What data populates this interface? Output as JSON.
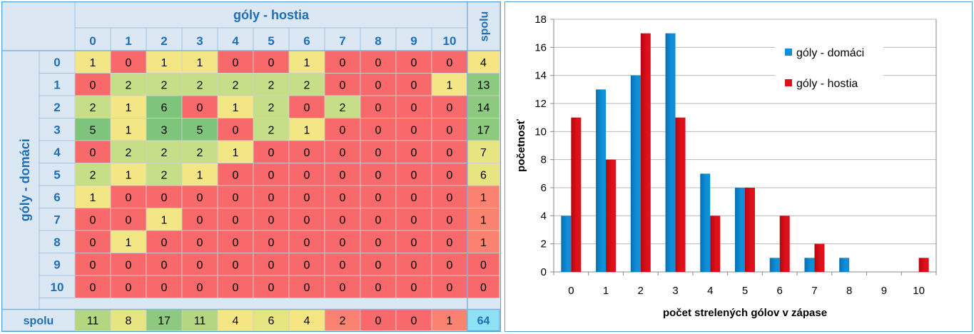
{
  "table": {
    "col_title": "góly - hostia",
    "row_title": "góly - domáci",
    "total_label": "spolu",
    "col_labels": [
      "0",
      "1",
      "2",
      "3",
      "4",
      "5",
      "6",
      "7",
      "8",
      "9",
      "10"
    ],
    "row_labels": [
      "0",
      "1",
      "2",
      "3",
      "4",
      "5",
      "6",
      "7",
      "8",
      "9",
      "10"
    ],
    "rows": [
      [
        1,
        0,
        1,
        1,
        0,
        0,
        1,
        0,
        0,
        0,
        0
      ],
      [
        0,
        2,
        2,
        2,
        2,
        2,
        2,
        0,
        0,
        0,
        1
      ],
      [
        2,
        1,
        6,
        0,
        1,
        2,
        0,
        2,
        0,
        0,
        0
      ],
      [
        5,
        1,
        3,
        5,
        0,
        2,
        1,
        0,
        0,
        0,
        0
      ],
      [
        0,
        2,
        2,
        2,
        1,
        0,
        0,
        0,
        0,
        0,
        0
      ],
      [
        2,
        1,
        2,
        1,
        0,
        0,
        0,
        0,
        0,
        0,
        0
      ],
      [
        1,
        0,
        0,
        0,
        0,
        0,
        0,
        0,
        0,
        0,
        0
      ],
      [
        0,
        0,
        1,
        0,
        0,
        0,
        0,
        0,
        0,
        0,
        0
      ],
      [
        0,
        1,
        0,
        0,
        0,
        0,
        0,
        0,
        0,
        0,
        0
      ],
      [
        0,
        0,
        0,
        0,
        0,
        0,
        0,
        0,
        0,
        0,
        0
      ],
      [
        0,
        0,
        0,
        0,
        0,
        0,
        0,
        0,
        0,
        0,
        0
      ]
    ],
    "row_totals": [
      4,
      13,
      14,
      17,
      7,
      6,
      1,
      1,
      1,
      0,
      0
    ],
    "col_totals": [
      11,
      8,
      17,
      11,
      4,
      6,
      4,
      2,
      0,
      0,
      1
    ],
    "grand_total": 64,
    "colors": {
      "zero": "#f8696b",
      "one": "#f2e784",
      "two": "#c6de87",
      "high": "#7fc47d",
      "header_bg": "#dbe7f3",
      "header_text": "#1f6fb8",
      "grand_total_bg": "#8fe1f5"
    }
  },
  "chart_data": {
    "type": "bar",
    "categories": [
      "0",
      "1",
      "2",
      "3",
      "4",
      "5",
      "6",
      "7",
      "8",
      "9",
      "10"
    ],
    "series": [
      {
        "name": "góly - domáci",
        "values": [
          4,
          13,
          14,
          17,
          7,
          6,
          1,
          1,
          1,
          0,
          0
        ],
        "color": "#0e8fd8"
      },
      {
        "name": "góly - hostia",
        "values": [
          11,
          8,
          17,
          11,
          4,
          6,
          4,
          2,
          0,
          0,
          1
        ],
        "color": "#e0101a"
      }
    ],
    "xlabel": "počet strelených gólov v zápase",
    "ylabel": "početnosť",
    "ylim": [
      0,
      18
    ],
    "yticks": [
      0,
      2,
      4,
      6,
      8,
      10,
      12,
      14,
      16,
      18
    ],
    "grid": true,
    "legend_position": "top-right"
  }
}
